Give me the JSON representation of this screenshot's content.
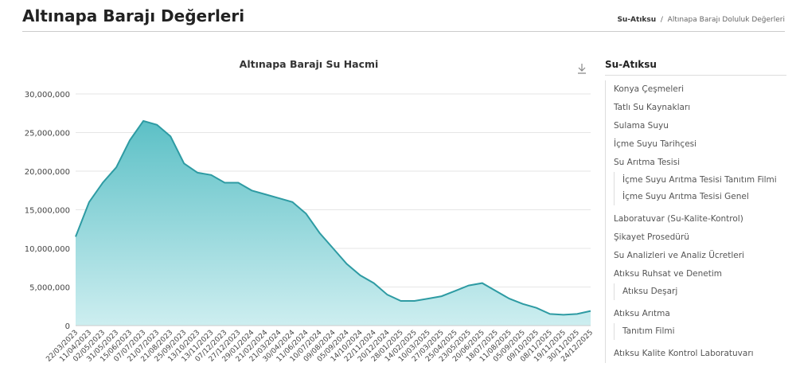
{
  "header": {
    "title": "Altınapa Barajı Değerleri",
    "breadcrumb": [
      "Su-Atıksu",
      "Altınapa Barajı Doluluk Değerleri"
    ]
  },
  "chart_data": {
    "type": "area",
    "title": "Altınapa Barajı Su Hacmi",
    "color": "#2e9ba3",
    "categories": [
      "22/03/2023",
      "11/04/2023",
      "02/05/2023",
      "31/05/2023",
      "15/06/2023",
      "07/07/2023",
      "21/07/2023",
      "21/08/2023",
      "25/09/2023",
      "13/10/2023",
      "13/11/2023",
      "07/12/2023",
      "27/12/2023",
      "29/01/2024",
      "21/02/2024",
      "21/03/2024",
      "30/04/2024",
      "11/06/2024",
      "10/07/2024",
      "09/08/2024",
      "05/09/2024",
      "14/10/2024",
      "22/11/2024",
      "20/12/2024",
      "28/01/2025",
      "14/02/2025",
      "10/03/2025",
      "27/03/2025",
      "25/04/2025",
      "23/05/2025",
      "20/06/2025",
      "18/07/2025",
      "11/08/2025",
      "05/09/2025",
      "09/10/2025",
      "08/11/2025",
      "19/11/2025",
      "30/11/2025",
      "24/12/2025"
    ],
    "values": [
      11500000,
      16000000,
      18500000,
      20500000,
      24000000,
      26500000,
      26000000,
      24500000,
      21000000,
      19800000,
      19500000,
      18500000,
      18500000,
      17500000,
      17000000,
      16500000,
      16000000,
      14500000,
      12000000,
      10000000,
      8000000,
      6500000,
      5500000,
      4000000,
      3200000,
      3200000,
      3500000,
      3800000,
      4500000,
      5200000,
      5500000,
      4500000,
      3500000,
      2800000,
      2300000,
      1500000,
      1400000,
      1500000,
      1900000
    ],
    "ylim": [
      0,
      30000000
    ],
    "yticks": [
      0,
      {
        "value": 5000000,
        "label": "5,000,000"
      },
      {
        "value": 10000000,
        "label": "10,000,000"
      },
      {
        "value": 15000000,
        "label": "15,000,000"
      },
      {
        "value": 20000000,
        "label": "20,000,000"
      },
      {
        "value": 25000000,
        "label": "25,000,000"
      },
      {
        "value": 30000000,
        "label": "30,000,000"
      }
    ],
    "grid": true
  },
  "sidebar": {
    "title": "Su-Atıksu",
    "items": [
      {
        "label": "Konya Çeşmeleri",
        "children": []
      },
      {
        "label": "Tatlı Su Kaynakları",
        "children": []
      },
      {
        "label": "Sulama Suyu",
        "children": []
      },
      {
        "label": "İçme Suyu Tarihçesi",
        "children": []
      },
      {
        "label": "Su Arıtma Tesisi",
        "children": [
          "İçme Suyu Arıtma Tesisi Tanıtım Filmi",
          "İçme Suyu Arıtma Tesisi Genel"
        ]
      },
      {
        "label": "Laboratuvar (Su-Kalite-Kontrol)",
        "children": []
      },
      {
        "label": "Şikayet Prosedürü",
        "children": []
      },
      {
        "label": "Su Analizleri ve Analiz Ücretleri",
        "children": []
      },
      {
        "label": "Atıksu Ruhsat ve Denetim",
        "children": [
          "Atıksu Deşarj"
        ]
      },
      {
        "label": "Atıksu Arıtma",
        "children": [
          "Tanıtım Filmi"
        ]
      },
      {
        "label": "Atıksu Kalite Kontrol Laboratuvarı",
        "children": []
      }
    ]
  }
}
